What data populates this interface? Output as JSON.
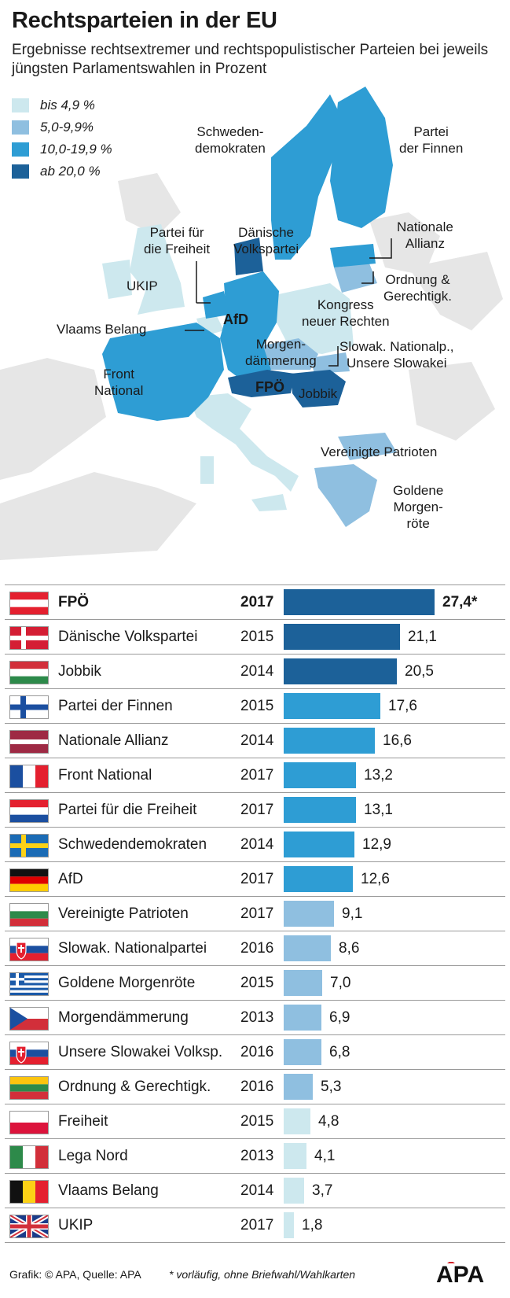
{
  "title": "Rechtsparteien in der EU",
  "subtitle": "Ergebnisse rechtsextremer und rechtspopulistischer Parteien bei jeweils jüngsten Parlamentswahlen in Prozent",
  "colors": {
    "c1": "#cde8ee",
    "c2": "#8fbfe0",
    "c3": "#2e9dd4",
    "c4": "#1c6199",
    "land": "#e6e6e6"
  },
  "legend": [
    {
      "label": "bis 4,9 %",
      "color": "#cde8ee"
    },
    {
      "label": "5,0-9,9%",
      "color": "#8fbfe0"
    },
    {
      "label": "10,0-19,9 %",
      "color": "#2e9dd4"
    },
    {
      "label": "ab 20,0 %",
      "color": "#1c6199"
    }
  ],
  "map_labels": {
    "schweden": "Schweden-\ndemokraten",
    "finnen": "Partei\nder Finnen",
    "nationale": "Nationale\nAllianz",
    "daenische": "Dänische\nVolkspartei",
    "freiheit": "Partei für\ndie Freiheit",
    "ukip": "UKIP",
    "ordnung": "Ordnung &\nGerechtigk.",
    "kongress": "Kongress\nneuer Rechten",
    "vlaams": "Vlaams Belang",
    "afd": "AfD",
    "morgen": "Morgen-\ndämmerung",
    "slowak": "Slowak. Nationalp.,\nUnsere Slowakei",
    "front": "Front\nNational",
    "fpoe": "FPÖ",
    "jobbik": "Jobbik",
    "vereinigte": "Vereinigte Patrioten",
    "goldene": "Goldene\nMorgen-\nröte"
  },
  "chart_data": {
    "type": "bar",
    "categories": [
      "FPÖ",
      "Dänische Volkspartei",
      "Jobbik",
      "Partei der Finnen",
      "Nationale Allianz",
      "Front National",
      "Partei für die Freiheit",
      "Schwedendemokraten",
      "AfD",
      "Vereinigte Patrioten",
      "Slowak. Nationalpartei",
      "Goldene Morgenröte",
      "Morgendämmerung",
      "Unsere Slowakei Volksp.",
      "Ordnung & Gerechtigk.",
      "Freiheit",
      "Lega Nord",
      "Vlaams Belang",
      "UKIP"
    ],
    "years": [
      "2017",
      "2015",
      "2014",
      "2015",
      "2014",
      "2017",
      "2017",
      "2014",
      "2017",
      "2017",
      "2016",
      "2015",
      "2013",
      "2016",
      "2016",
      "2015",
      "2013",
      "2014",
      "2017"
    ],
    "values": [
      27.4,
      21.1,
      20.5,
      17.6,
      16.6,
      13.2,
      13.1,
      12.9,
      12.6,
      9.1,
      8.6,
      7.0,
      6.9,
      6.8,
      5.3,
      4.8,
      4.1,
      3.7,
      1.8
    ],
    "value_labels": [
      "27,4*",
      "21,1",
      "20,5",
      "17,6",
      "16,6",
      "13,2",
      "13,1",
      "12,9",
      "12,6",
      "9,1",
      "8,6",
      "7,0",
      "6,9",
      "6,8",
      "5,3",
      "4,8",
      "4,1",
      "3,7",
      "1,8"
    ],
    "flags": [
      "austria",
      "denmark",
      "hungary",
      "finland",
      "latvia",
      "france",
      "netherlands",
      "sweden",
      "germany",
      "bulgaria",
      "slovakia",
      "greece",
      "czech",
      "slovakia",
      "lithuania",
      "poland",
      "italy",
      "belgium",
      "uk"
    ]
  },
  "footer": {
    "source": "Grafik: © APA, Quelle: APA",
    "note": "* vorläufig, ohne Briefwahl/Wahlkarten",
    "logo": "APA"
  }
}
